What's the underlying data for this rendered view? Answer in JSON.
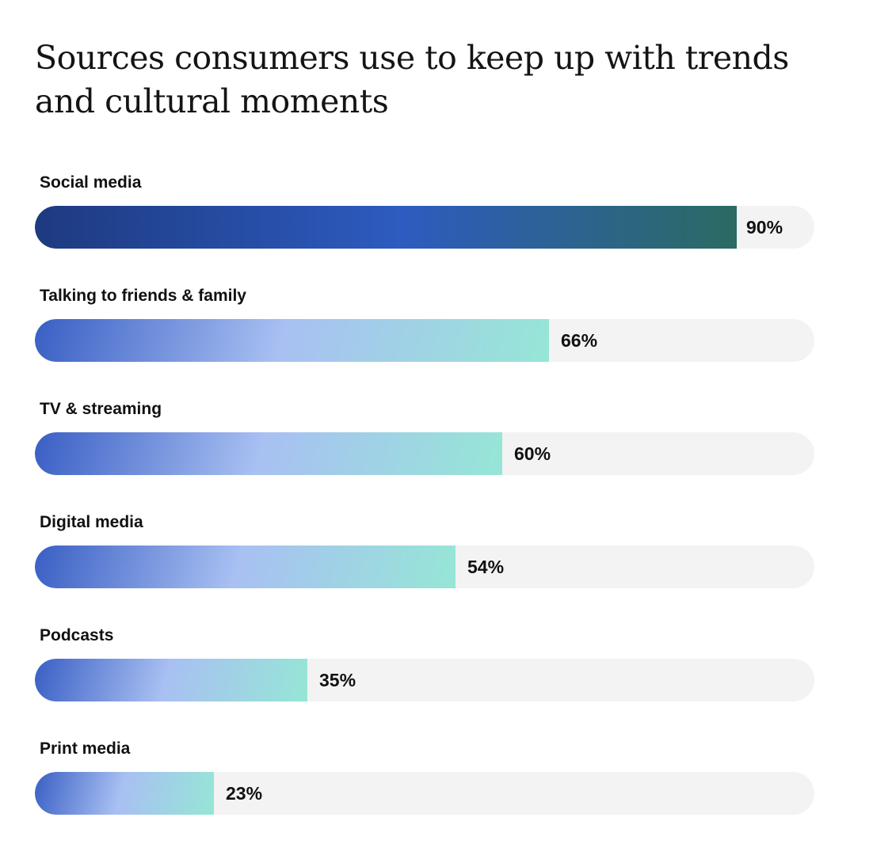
{
  "chart_data": {
    "type": "bar",
    "orientation": "horizontal",
    "title": "Sources consumers use to keep up with trends and cultural moments",
    "categories": [
      "Social media",
      "Talking to friends & family",
      "TV & streaming",
      "Digital media",
      "Podcasts",
      "Print media"
    ],
    "values": [
      90,
      66,
      60,
      54,
      35,
      23
    ],
    "value_labels": [
      "90%",
      "66%",
      "60%",
      "54%",
      "35%",
      "23%"
    ],
    "unit": "%",
    "xlim": [
      0,
      100
    ],
    "grid": false,
    "legend": "none",
    "colors": {
      "highlight_gradient": [
        "#1e3a80",
        "#2d5bc0",
        "#2a6b62"
      ],
      "standard_gradient": [
        "#3a5fc4",
        "#a8c0f2",
        "#96e6d6"
      ],
      "track": "#f3f3f3",
      "text": "#111111"
    }
  }
}
